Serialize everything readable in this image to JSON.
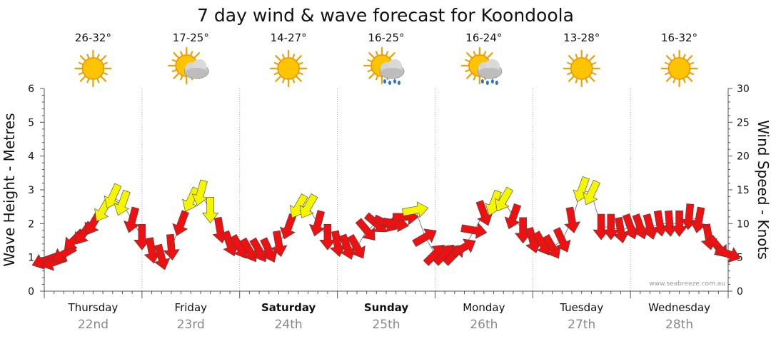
{
  "chart_data": {
    "type": "line",
    "title": "7 day wind & wave forecast for Koondoola",
    "ylabel_left": "Wave Height - Metres",
    "ylabel_right": "Wind Speed - Knots",
    "ylim_left": [
      0,
      6
    ],
    "ylim_right": [
      0,
      30
    ],
    "yticks_left": [
      "0",
      "1",
      "2",
      "3",
      "4",
      "5",
      "6"
    ],
    "yticks_right": [
      "0",
      "5",
      "10",
      "15",
      "20",
      "25",
      "30"
    ],
    "days": [
      {
        "name": "Thursday",
        "date": "22nd",
        "temp": "26-32°",
        "weather": "sunny",
        "bold": false
      },
      {
        "name": "Friday",
        "date": "23rd",
        "temp": "17-25°",
        "weather": "partly-cloudy",
        "bold": false
      },
      {
        "name": "Saturday",
        "date": "24th",
        "temp": "14-27°",
        "weather": "sunny",
        "bold": true
      },
      {
        "name": "Sunday",
        "date": "25th",
        "temp": "16-25°",
        "weather": "cloudy-rain",
        "bold": true
      },
      {
        "name": "Monday",
        "date": "26th",
        "temp": "16-24°",
        "weather": "cloudy-rain",
        "bold": false
      },
      {
        "name": "Tuesday",
        "date": "27th",
        "temp": "13-28°",
        "weather": "sunny",
        "bold": false
      },
      {
        "name": "Wednesday",
        "date": "28th",
        "temp": "16-32°",
        "weather": "sunny",
        "bold": false
      }
    ],
    "wind_series": {
      "name": "Wind speed (knots)",
      "note": "hourly-ish samples across 7 days; x in days from start (0-7)",
      "x": [
        0.0,
        0.1,
        0.2,
        0.3,
        0.4,
        0.5,
        0.6,
        0.7,
        0.8,
        0.9,
        1.0,
        1.1,
        1.2,
        1.3,
        1.4,
        1.5,
        1.6,
        1.7,
        1.8,
        1.9,
        2.0,
        2.1,
        2.2,
        2.3,
        2.4,
        2.5,
        2.6,
        2.7,
        2.8,
        2.9,
        3.0,
        3.1,
        3.2,
        3.3,
        3.4,
        3.5,
        3.6,
        3.7,
        3.8,
        3.9,
        4.0,
        4.1,
        4.2,
        4.3,
        4.4,
        4.5,
        4.6,
        4.7,
        4.8,
        4.9,
        5.0,
        5.1,
        5.2,
        5.3,
        5.4,
        5.5,
        5.6,
        5.7,
        5.8,
        5.9,
        6.0,
        6.1,
        6.2,
        6.3,
        6.4,
        6.5,
        6.6,
        6.7,
        6.8,
        6.9,
        7.0
      ],
      "values": [
        4.5,
        4.3,
        5.5,
        7.5,
        8.5,
        10,
        12,
        14,
        13,
        10.5,
        8,
        6,
        5,
        6.5,
        10,
        13.5,
        14.5,
        12,
        9,
        7,
        6.5,
        6,
        6,
        6,
        7,
        9.5,
        12.5,
        12.5,
        10,
        8,
        7,
        6.5,
        6.5,
        9,
        10,
        10,
        10,
        11,
        12,
        8,
        5.5,
        5.5,
        5.5,
        6.5,
        9,
        11.5,
        13,
        13.5,
        11,
        9,
        7.5,
        7,
        6.5,
        7.5,
        10.5,
        15,
        14.5,
        9.5,
        9.5,
        9,
        9.5,
        9.5,
        9.5,
        10,
        10,
        10,
        11,
        10.5,
        8,
        6.5,
        5.5
      ],
      "directions_deg": [
        250,
        250,
        240,
        225,
        215,
        210,
        210,
        205,
        200,
        195,
        180,
        170,
        165,
        175,
        200,
        205,
        195,
        180,
        170,
        160,
        150,
        150,
        150,
        155,
        170,
        200,
        210,
        210,
        195,
        180,
        170,
        160,
        150,
        140,
        130,
        115,
        100,
        90,
        80,
        60,
        45,
        45,
        45,
        60,
        100,
        160,
        200,
        210,
        200,
        180,
        165,
        150,
        150,
        155,
        170,
        200,
        205,
        180,
        180,
        170,
        160,
        160,
        165,
        170,
        175,
        180,
        185,
        190,
        170,
        140,
        110
      ],
      "color_above_12": "#f5f500",
      "color_below_12": "#ee1111"
    },
    "credit": "www.seabreeze.com.au"
  }
}
